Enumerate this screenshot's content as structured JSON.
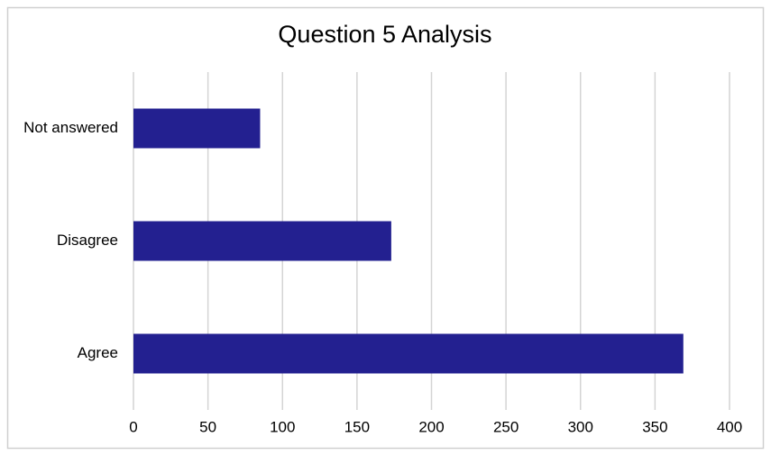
{
  "chart_data": {
    "type": "bar",
    "orientation": "horizontal",
    "title": "Question 5 Analysis",
    "categories": [
      "Not answered",
      "Disagree",
      "Agree"
    ],
    "values": [
      85,
      173,
      369
    ],
    "color": "#232090",
    "xlim": [
      0,
      400
    ],
    "xticks": [
      0,
      50,
      100,
      150,
      200,
      250,
      300,
      350,
      400
    ],
    "grid": true
  }
}
